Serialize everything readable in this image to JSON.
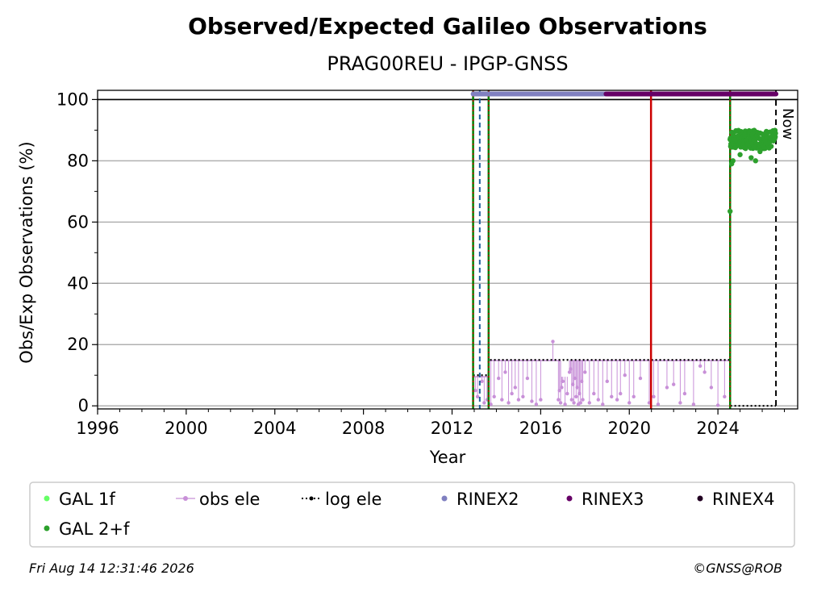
{
  "chart_data": {
    "type": "scatter",
    "title": "Observed/Expected Galileo Observations",
    "subtitle": "PRAG00REU - IPGP-GNSS",
    "xlabel": "Year",
    "ylabel": "Obs/Exp Observations (%)",
    "xlim": [
      1996,
      2027.6
    ],
    "ylim": [
      -1,
      103
    ],
    "x_ticks": [
      "1996",
      "2000",
      "2004",
      "2008",
      "2012",
      "2016",
      "2020",
      "2024"
    ],
    "y_ticks": [
      "0",
      "20",
      "40",
      "60",
      "80",
      "100"
    ],
    "grid": "horizontal",
    "now_label": "Now",
    "now_x": 2026.62,
    "legend_placement": "below",
    "legend": [
      {
        "label": "GAL 1f",
        "color": "#66ff66",
        "marker": "dot"
      },
      {
        "label": "obs ele",
        "color": "#c890d8",
        "marker": "line-dot"
      },
      {
        "label": "log ele",
        "color": "#000000",
        "marker": "dotted-line"
      },
      {
        "label": "RINEX2",
        "color": "#8080c0",
        "marker": "dot"
      },
      {
        "label": "RINEX3",
        "color": "#660066",
        "marker": "dot"
      },
      {
        "label": "RINEX4",
        "color": "#220022",
        "marker": "dot"
      },
      {
        "label": "GAL 2+f",
        "color": "#2ca02c",
        "marker": "dot"
      }
    ],
    "reference_line_y": 100,
    "vertical_events": [
      {
        "x": 2012.95,
        "color": "#008000",
        "style": "solid",
        "overlay": "#cc0000"
      },
      {
        "x": 2013.25,
        "color": "#1f5f9f",
        "style": "dashed"
      },
      {
        "x": 2013.65,
        "color": "#008000",
        "style": "solid",
        "overlay": "#cc0000"
      },
      {
        "x": 2020.98,
        "color": "#cc0000",
        "style": "solid"
      },
      {
        "x": 2024.55,
        "color": "#008000",
        "style": "solid",
        "overlay": "#cc0000"
      }
    ],
    "rinex_bars": [
      {
        "name": "RINEX2",
        "y": 101.8,
        "x_start": 2012.95,
        "x_end": 2018.95,
        "color": "#8080c0"
      },
      {
        "name": "RINEX3",
        "y": 101.8,
        "x_start": 2018.95,
        "x_end": 2026.62,
        "color": "#660066"
      }
    ],
    "log_ele": {
      "color": "#000000",
      "points": [
        [
          2012.95,
          10
        ],
        [
          2013.65,
          10
        ],
        [
          2013.65,
          15
        ],
        [
          2017.05,
          15
        ],
        [
          2017.3,
          15
        ],
        [
          2024.55,
          15
        ],
        [
          2024.55,
          0
        ],
        [
          2026.62,
          0
        ]
      ]
    },
    "obs_ele": {
      "color": "#c890d8",
      "segments": [
        {
          "x_start": 2012.95,
          "x_end": 2013.65,
          "y": 9.5
        },
        {
          "x_start": 2013.65,
          "x_end": 2016.9,
          "y": 14.8
        },
        {
          "x_start": 2017.3,
          "x_end": 2024.5,
          "y": 14.8
        }
      ],
      "dips": [
        [
          2013.05,
          5
        ],
        [
          2013.15,
          3
        ],
        [
          2013.35,
          8
        ],
        [
          2013.45,
          1
        ],
        [
          2013.58,
          2
        ],
        [
          2013.75,
          0.5
        ],
        [
          2013.9,
          3
        ],
        [
          2014.1,
          9
        ],
        [
          2014.25,
          2
        ],
        [
          2014.4,
          11
        ],
        [
          2014.55,
          1
        ],
        [
          2014.7,
          4
        ],
        [
          2014.85,
          6
        ],
        [
          2015.0,
          2
        ],
        [
          2015.2,
          3
        ],
        [
          2015.4,
          9
        ],
        [
          2015.6,
          1.5
        ],
        [
          2015.8,
          0.5
        ],
        [
          2016.0,
          2
        ],
        [
          2016.55,
          21
        ],
        [
          2016.8,
          2
        ],
        [
          2016.85,
          5
        ],
        [
          2016.9,
          1
        ],
        [
          2016.95,
          6
        ],
        [
          2017.0,
          8
        ],
        [
          2017.1,
          0.5
        ],
        [
          2017.2,
          4
        ],
        [
          2017.3,
          11
        ],
        [
          2017.35,
          12
        ],
        [
          2017.4,
          2
        ],
        [
          2017.45,
          7
        ],
        [
          2017.5,
          1
        ],
        [
          2017.55,
          9
        ],
        [
          2017.6,
          3
        ],
        [
          2017.65,
          6
        ],
        [
          2017.7,
          0.5
        ],
        [
          2017.75,
          4
        ],
        [
          2017.8,
          1
        ],
        [
          2017.85,
          8
        ],
        [
          2017.9,
          2
        ],
        [
          2018.0,
          11
        ],
        [
          2018.2,
          1
        ],
        [
          2018.4,
          4
        ],
        [
          2018.6,
          2
        ],
        [
          2018.8,
          0.5
        ],
        [
          2019.0,
          8
        ],
        [
          2019.2,
          3
        ],
        [
          2019.45,
          2
        ],
        [
          2019.6,
          4
        ],
        [
          2019.8,
          10
        ],
        [
          2020.0,
          1
        ],
        [
          2020.2,
          3
        ],
        [
          2020.5,
          9
        ],
        [
          2020.9,
          1
        ],
        [
          2021.1,
          3
        ],
        [
          2021.3,
          0.5
        ],
        [
          2021.7,
          6
        ],
        [
          2022.0,
          7
        ],
        [
          2022.3,
          1
        ],
        [
          2022.5,
          4
        ],
        [
          2022.9,
          0.5
        ],
        [
          2023.2,
          13
        ],
        [
          2023.4,
          11
        ],
        [
          2023.7,
          6
        ],
        [
          2024.0,
          0.2
        ],
        [
          2024.3,
          3
        ]
      ]
    },
    "gal_2f": {
      "color": "#2ca02c",
      "x_start": 2024.55,
      "x_end": 2026.6,
      "typical_range": [
        84,
        90
      ],
      "outliers": [
        [
          2024.55,
          63.5
        ],
        [
          2024.62,
          79
        ],
        [
          2024.68,
          80
        ],
        [
          2025.0,
          82
        ],
        [
          2025.25,
          84
        ],
        [
          2025.5,
          81
        ],
        [
          2025.7,
          80
        ],
        [
          2025.9,
          83
        ],
        [
          2026.1,
          84
        ]
      ]
    }
  },
  "footer": {
    "timestamp": "Fri Aug 14 12:31:46 2026",
    "credit": "©GNSS@ROB"
  }
}
